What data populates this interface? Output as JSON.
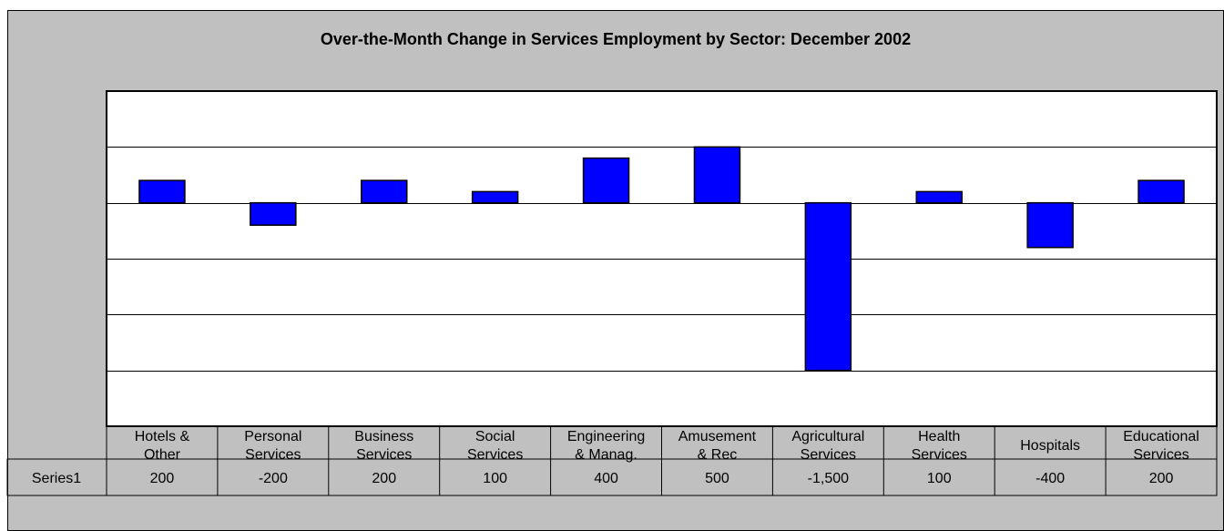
{
  "chart_data": {
    "type": "bar",
    "title": "Over-the-Month Change in Services Employment by Sector: December 2002",
    "categories": [
      [
        "Hotels &",
        "Other"
      ],
      [
        "Personal",
        "Services"
      ],
      [
        "Business",
        "Services"
      ],
      [
        "Social",
        "Services"
      ],
      [
        "Engineering",
        "& Manag."
      ],
      [
        "Amusement",
        "& Rec"
      ],
      [
        "Agricultural",
        "Services"
      ],
      [
        "Health",
        "Services"
      ],
      [
        "Hospitals"
      ],
      [
        "Educational",
        "Services"
      ]
    ],
    "series": [
      {
        "name": "Series1",
        "values": [
          200,
          -200,
          200,
          100,
          400,
          500,
          -1500,
          100,
          -400,
          200
        ],
        "value_labels": [
          "200",
          "-200",
          "200",
          "100",
          "400",
          "500",
          "-1,500",
          "100",
          "-400",
          "200"
        ],
        "color": "#0000ff"
      }
    ],
    "ylim": [
      -2000,
      1000
    ],
    "grid_step": 500,
    "grid": true,
    "legend": "data-table",
    "background_color": "#c0c0c0",
    "plot_color": "#ffffff"
  }
}
